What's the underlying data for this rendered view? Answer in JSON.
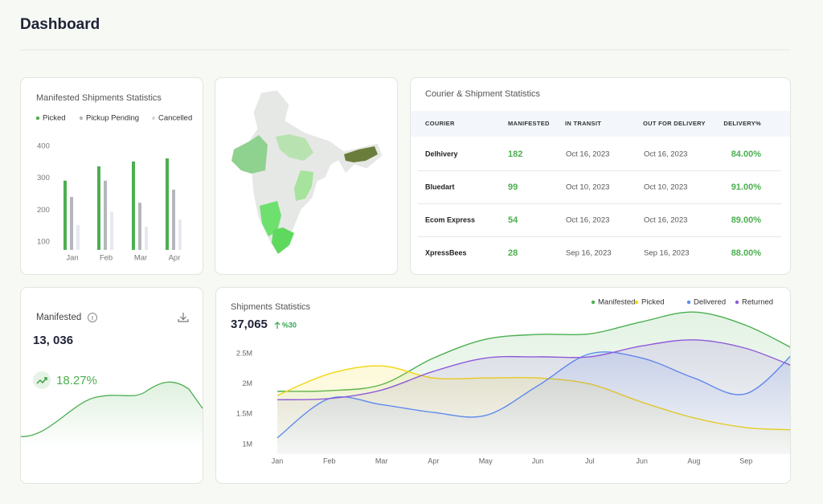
{
  "header": {
    "title": "Dashboard"
  },
  "chart_data": [
    {
      "type": "bar",
      "title": "Manifested Shipments Statistics",
      "categories": [
        "Jan",
        "Feb",
        "Mar",
        "Apr"
      ],
      "series": [
        {
          "name": "Picked",
          "color": "#4caf50",
          "values": [
            292,
            337,
            352,
            362
          ]
        },
        {
          "name": "Pickup Pending",
          "color": "#b3b7bb",
          "values": [
            241,
            292,
            223,
            264
          ]
        },
        {
          "name": "Cancelled",
          "color": "#e7e9f0",
          "values": [
            153,
            195,
            148,
            170
          ]
        }
      ],
      "ylim": [
        75,
        420
      ],
      "yticks": [
        100,
        200,
        300,
        400
      ],
      "grid": false,
      "legend": "top"
    },
    {
      "type": "line",
      "title": "Shipments Statistics",
      "total": "37,065",
      "change": "%30",
      "categories": [
        "Jan",
        "Feb",
        "Mar",
        "Apr",
        "May",
        "Jun",
        "Jul",
        "Jun",
        "Aug",
        "Sep",
        null
      ],
      "series": [
        {
          "name": "Manifested",
          "color": "#4caf50",
          "values": [
            1880000,
            1890000,
            1990000,
            2430000,
            2740000,
            2820000,
            2830000,
            3030000,
            3190000,
            2970000,
            2540000
          ]
        },
        {
          "name": "Picked",
          "color": "#f2d60c",
          "values": [
            1810000,
            2170000,
            2300000,
            2100000,
            2100000,
            2100000,
            2000000,
            1700000,
            1440000,
            1280000,
            1240000
          ]
        },
        {
          "name": "Delivered",
          "color": "#5b8def",
          "values": [
            1110000,
            1760000,
            1660000,
            1530000,
            1480000,
            1970000,
            2500000,
            2430000,
            2100000,
            1840000,
            2590000
          ]
        },
        {
          "name": "Returned",
          "color": "#8e5bd8",
          "values": [
            1740000,
            1760000,
            1900000,
            2210000,
            2430000,
            2450000,
            2450000,
            2630000,
            2730000,
            2590000,
            2260000
          ]
        }
      ],
      "ylim": [
        840000,
        3100000
      ],
      "yticks": [
        {
          "value": 1000000,
          "label": "1M"
        },
        {
          "value": 1500000,
          "label": "1.5M"
        },
        {
          "value": 2000000,
          "label": "2M"
        },
        {
          "value": 2500000,
          "label": "2.5M"
        }
      ],
      "grid": false,
      "legend": "top-right"
    }
  ],
  "manifested_card": {
    "title": "Manifested",
    "value": "13, 036",
    "change": "18.27%"
  },
  "table": {
    "title": "Courier & Shipment Statistics",
    "columns": [
      "COURIER",
      "MANIFESTED",
      "IN TRANSIT",
      "OUT FOR DELIVERY",
      "DELIVERY%"
    ],
    "rows": [
      [
        "Delhivery",
        182,
        "Oct 16, 2023",
        "Oct 16, 2023",
        "84.00%"
      ],
      [
        "Bluedart",
        99,
        "Oct 10, 2023",
        "Oct 10, 2023",
        "91.00%"
      ],
      [
        "Ecom Express",
        54,
        "Oct 16, 2023",
        "Oct 16, 2023",
        "89.00%"
      ],
      [
        "XpressBees",
        28,
        "Sep 16, 2023",
        "Sep 16, 2023",
        "88.00%"
      ]
    ]
  }
}
